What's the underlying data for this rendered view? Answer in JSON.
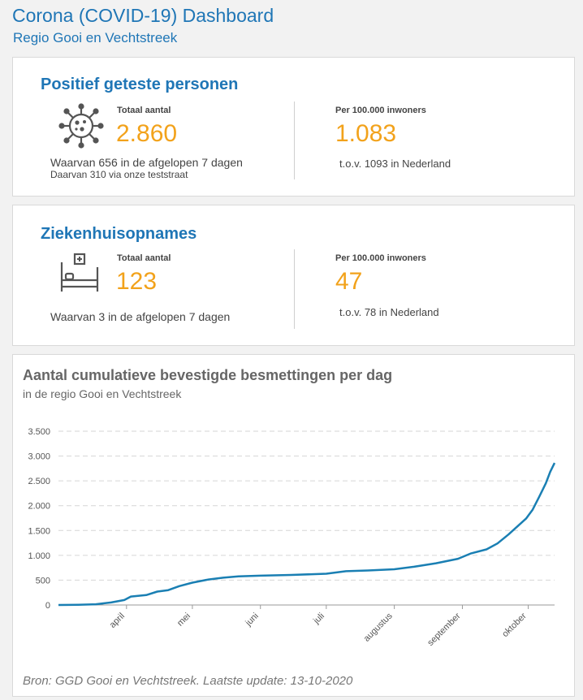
{
  "header": {
    "title": "Corona (COVID-19) Dashboard",
    "subtitle": "Regio Gooi en Vechtstreek"
  },
  "cards": [
    {
      "title": "Positief geteste personen",
      "icon": "virus-icon",
      "total_label": "Totaal aantal",
      "total_value": "2.860",
      "note1": "Waarvan 656 in de afgelopen 7 dagen",
      "note2": "Daarvan 310 via onze teststraat",
      "per_label": "Per 100.000 inwoners",
      "per_value": "1.083",
      "per_note": "t.o.v. 1093 in Nederland"
    },
    {
      "title": "Ziekenhuisopnames",
      "icon": "hospital-bed-icon",
      "total_label": "Totaal aantal",
      "total_value": "123",
      "note1": "Waarvan 3 in de afgelopen 7 dagen",
      "per_label": "Per 100.000 inwoners",
      "per_value": "47",
      "per_note": "t.o.v. 78 in Nederland"
    }
  ],
  "colors": {
    "accent": "#1f76b6",
    "highlight": "#f2a21b",
    "line": "#1a7fb3"
  },
  "chart_title": "Aantal cumulatieve bevestigde besmettingen per dag",
  "chart_subtitle": "in de regio Gooi en Vechtstreek",
  "source": "Bron: GGD Gooi en Vechtstreek. Laatste update: 13-10-2020",
  "chart_data": {
    "type": "line",
    "title": "Aantal cumulatieve bevestigde besmettingen per dag",
    "subtitle": "in de regio Gooi en Vechtstreek",
    "ylim": [
      0,
      3500
    ],
    "yticks": [
      {
        "v": 0,
        "label": "0"
      },
      {
        "v": 500,
        "label": "500"
      },
      {
        "v": 1000,
        "label": "1.000"
      },
      {
        "v": 1500,
        "label": "1.500"
      },
      {
        "v": 2000,
        "label": "2.000"
      },
      {
        "v": 2500,
        "label": "2.500"
      },
      {
        "v": 3000,
        "label": "3.000"
      },
      {
        "v": 3500,
        "label": "3.500"
      }
    ],
    "xrange": [
      "2020-03-01",
      "2020-10-13"
    ],
    "xticks": [
      {
        "date": "2020-04-01",
        "label": "april"
      },
      {
        "date": "2020-05-01",
        "label": "mei"
      },
      {
        "date": "2020-06-01",
        "label": "juni"
      },
      {
        "date": "2020-07-01",
        "label": "juli"
      },
      {
        "date": "2020-08-01",
        "label": "augustus"
      },
      {
        "date": "2020-09-01",
        "label": "september"
      },
      {
        "date": "2020-10-01",
        "label": "oktober"
      }
    ],
    "grid": true,
    "series": [
      {
        "values": [
          {
            "x": "2020-03-01",
            "y": 0
          },
          {
            "x": "2020-03-10",
            "y": 5
          },
          {
            "x": "2020-03-18",
            "y": 15
          },
          {
            "x": "2020-03-25",
            "y": 50
          },
          {
            "x": "2020-03-31",
            "y": 100
          },
          {
            "x": "2020-04-03",
            "y": 170
          },
          {
            "x": "2020-04-10",
            "y": 200
          },
          {
            "x": "2020-04-15",
            "y": 270
          },
          {
            "x": "2020-04-20",
            "y": 300
          },
          {
            "x": "2020-04-25",
            "y": 380
          },
          {
            "x": "2020-05-01",
            "y": 450
          },
          {
            "x": "2020-05-08",
            "y": 510
          },
          {
            "x": "2020-05-15",
            "y": 550
          },
          {
            "x": "2020-05-22",
            "y": 575
          },
          {
            "x": "2020-06-01",
            "y": 590
          },
          {
            "x": "2020-06-15",
            "y": 605
          },
          {
            "x": "2020-07-01",
            "y": 630
          },
          {
            "x": "2020-07-10",
            "y": 680
          },
          {
            "x": "2020-07-20",
            "y": 695
          },
          {
            "x": "2020-08-01",
            "y": 720
          },
          {
            "x": "2020-08-10",
            "y": 770
          },
          {
            "x": "2020-08-20",
            "y": 840
          },
          {
            "x": "2020-08-30",
            "y": 930
          },
          {
            "x": "2020-09-05",
            "y": 1040
          },
          {
            "x": "2020-09-12",
            "y": 1120
          },
          {
            "x": "2020-09-17",
            "y": 1240
          },
          {
            "x": "2020-09-22",
            "y": 1420
          },
          {
            "x": "2020-09-26",
            "y": 1580
          },
          {
            "x": "2020-09-30",
            "y": 1740
          },
          {
            "x": "2020-10-03",
            "y": 1920
          },
          {
            "x": "2020-10-06",
            "y": 2180
          },
          {
            "x": "2020-10-09",
            "y": 2450
          },
          {
            "x": "2020-10-11",
            "y": 2680
          },
          {
            "x": "2020-10-13",
            "y": 2860
          }
        ]
      }
    ]
  }
}
